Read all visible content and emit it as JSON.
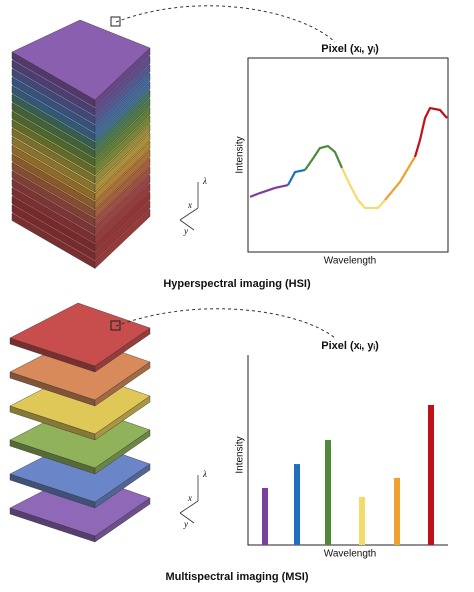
{
  "hsi": {
    "pixel_label": "Pixel (xᵢ, yᵢ)",
    "y_label": "Intensity",
    "x_label": "Wavelength",
    "caption": "Hyperspectral imaging (HSI)",
    "axes": {
      "x": "x",
      "y": "y",
      "z": "λ"
    },
    "spectrum": [
      {
        "color": "#7b3fa0",
        "x": [
          1,
          6,
          13.5,
          20
        ],
        "y": [
          28.4,
          30.4,
          33,
          34.5
        ]
      },
      {
        "color": "#1f6fc0",
        "x": [
          20,
          23.5,
          28.5
        ],
        "y": [
          34.5,
          41.2,
          42.3
        ]
      },
      {
        "color": "#4e8a3a",
        "x": [
          28.5,
          32,
          36,
          40,
          43.5,
          47
        ],
        "y": [
          42.3,
          47.4,
          53.6,
          54.6,
          51.5,
          43.3
        ]
      },
      {
        "color": "#f5dc6a",
        "x": [
          47,
          51,
          55,
          58.5,
          65,
          68.5
        ],
        "y": [
          43.3,
          34.5,
          26.8,
          22.7,
          22.7,
          26.8
        ]
      },
      {
        "color": "#f0a030",
        "x": [
          68.5,
          76,
          81,
          83.5
        ],
        "y": [
          26.8,
          36.1,
          44.8,
          49
        ]
      },
      {
        "color": "#c0101a",
        "x": [
          83.5,
          86,
          88.5,
          91,
          96,
          99.5
        ],
        "y": [
          49,
          57.7,
          69,
          74.2,
          73.2,
          69
        ]
      }
    ]
  },
  "msi": {
    "pixel_label": "Pixel (xᵢ, yᵢ)",
    "y_label": "Intensity",
    "x_label": "Wavelength",
    "caption": "Multispectral imaging (MSI)",
    "axes": {
      "x": "x",
      "y": "y",
      "z": "λ"
    },
    "bars": {
      "values": [
        30,
        42.6,
        55.3,
        25.3,
        35.3,
        73.7
      ],
      "colors": [
        "#7b3fa0",
        "#1f6fc0",
        "#4e8a3a",
        "#f5dc6a",
        "#f0a030",
        "#c0101a"
      ]
    }
  }
}
